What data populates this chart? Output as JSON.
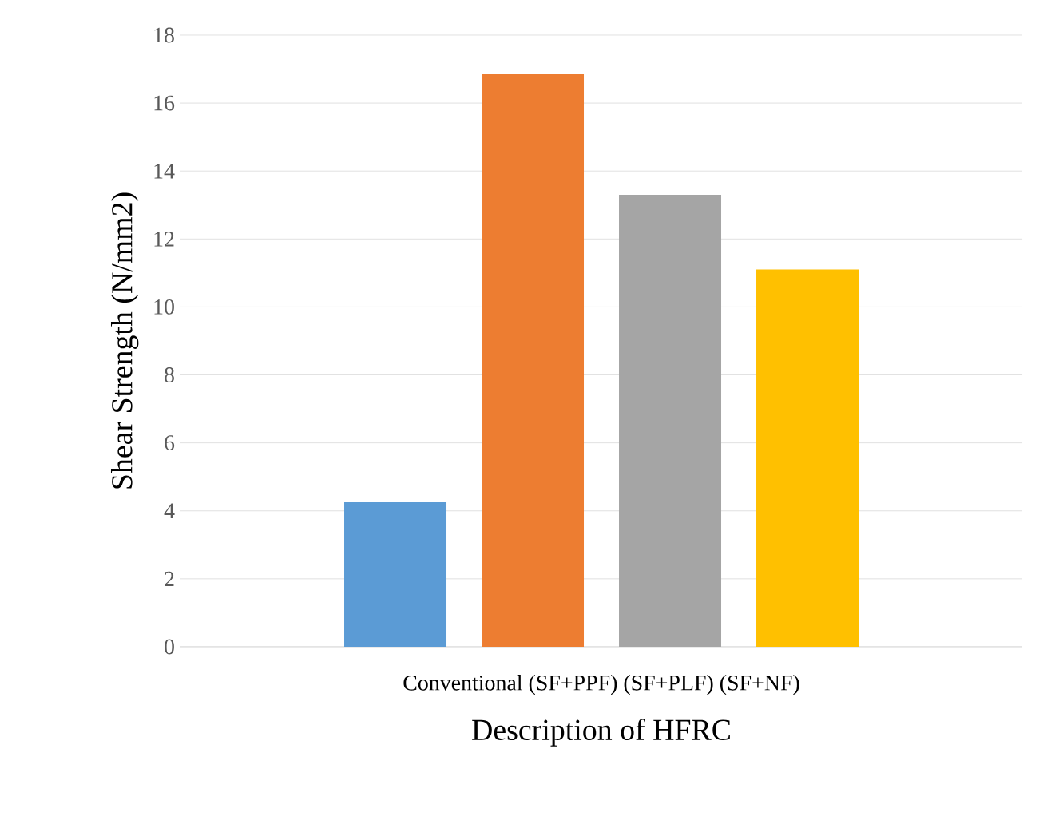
{
  "chart_data": {
    "type": "bar",
    "xlabel": "Description of HFRC",
    "ylabel": "Shear  Strength (N/mm2)",
    "categories": [
      "Conventional (SF+PPF) (SF+PLF) (SF+NF)"
    ],
    "series": [
      {
        "color": "#5b9bd5",
        "values": [
          4.25
        ]
      },
      {
        "color": "#ed7d31",
        "values": [
          16.85
        ]
      },
      {
        "color": "#a5a5a5",
        "values": [
          13.3
        ]
      },
      {
        "color": "#ffc000",
        "values": [
          11.1
        ]
      }
    ],
    "ylim": [
      0,
      18
    ],
    "yticks": [
      0,
      2,
      4,
      6,
      8,
      10,
      12,
      14,
      16,
      18
    ],
    "grid": "y"
  }
}
